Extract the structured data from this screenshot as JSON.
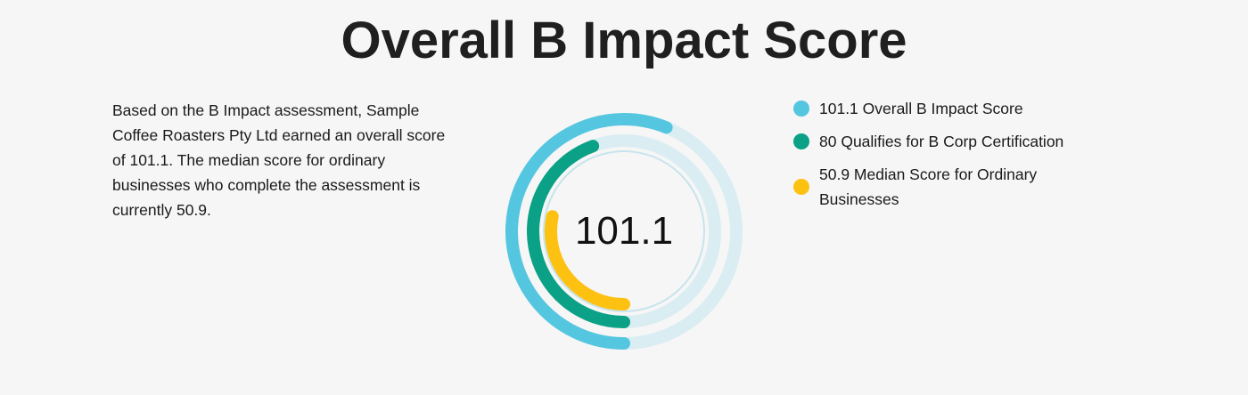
{
  "title": "Overall B Impact Score",
  "description": "Based on the B Impact assessment, Sample Coffee Roasters Pty Ltd earned an overall score of 101.1. The median score for ordinary businesses who complete the assessment is currently 50.9.",
  "colors": {
    "background": "#f6f6f6",
    "track": "#d9edf2",
    "inner_guide": "#c7e4ec"
  },
  "chart_data": {
    "type": "radial-bar",
    "center_label": "101.1",
    "scale_max": 180,
    "series": [
      {
        "name": "101.1 Overall B Impact Score",
        "value": 101.1,
        "color": "#55c6e0"
      },
      {
        "name": "80 Qualifies for B Corp Certification",
        "value": 80,
        "color": "#0aa186"
      },
      {
        "name": "50.9 Median Score for Ordinary Businesses",
        "value": 50.9,
        "color": "#fdc112"
      }
    ]
  }
}
